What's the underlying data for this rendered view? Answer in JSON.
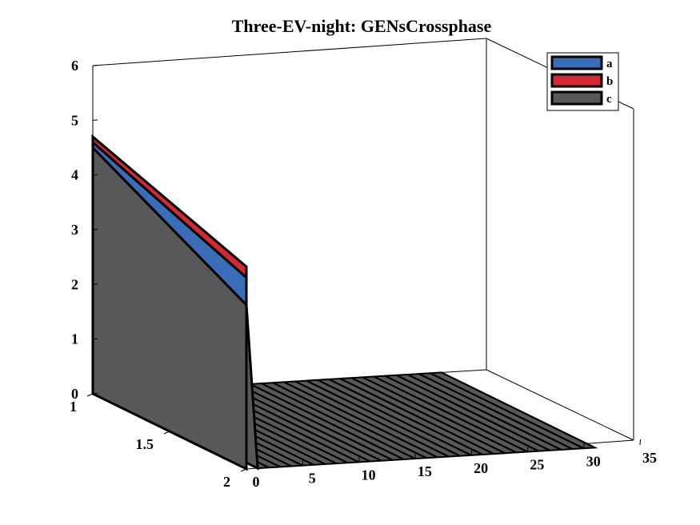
{
  "chart_data": {
    "type": "area",
    "title": "Three-EV-night: GENsCrossphase",
    "xlabel": "",
    "ylabel": "",
    "zlabel": "",
    "x_axis": {
      "range": [
        0,
        35
      ],
      "ticks": [
        "0",
        "5",
        "10",
        "15",
        "20",
        "25",
        "30",
        "35"
      ]
    },
    "y_axis": {
      "range": [
        1,
        2
      ],
      "ticks": [
        "1",
        "1.5",
        "2"
      ]
    },
    "z_axis": {
      "range": [
        0,
        6
      ],
      "ticks": [
        "0",
        "1",
        "2",
        "3",
        "4",
        "5",
        "6"
      ]
    },
    "grid": false,
    "legend_position": "top-right",
    "x": [
      0,
      1,
      2,
      3,
      4,
      5,
      6,
      7,
      8,
      9,
      10,
      11,
      12,
      13,
      14,
      15,
      16,
      17,
      18,
      19,
      20,
      21,
      22,
      23,
      24,
      25,
      26,
      27,
      28,
      29,
      30,
      31
    ],
    "series": [
      {
        "name": "c",
        "color": "#58585a",
        "values_y1": 4.5,
        "values_y2": 3.0
      },
      {
        "name": "a",
        "color": "#3a6cb8",
        "values_y1": 0.1,
        "values_y2": 0.5
      },
      {
        "name": "b",
        "color": "#d12a34",
        "values_y1": 0.1,
        "values_y2": 0.2
      }
    ]
  }
}
